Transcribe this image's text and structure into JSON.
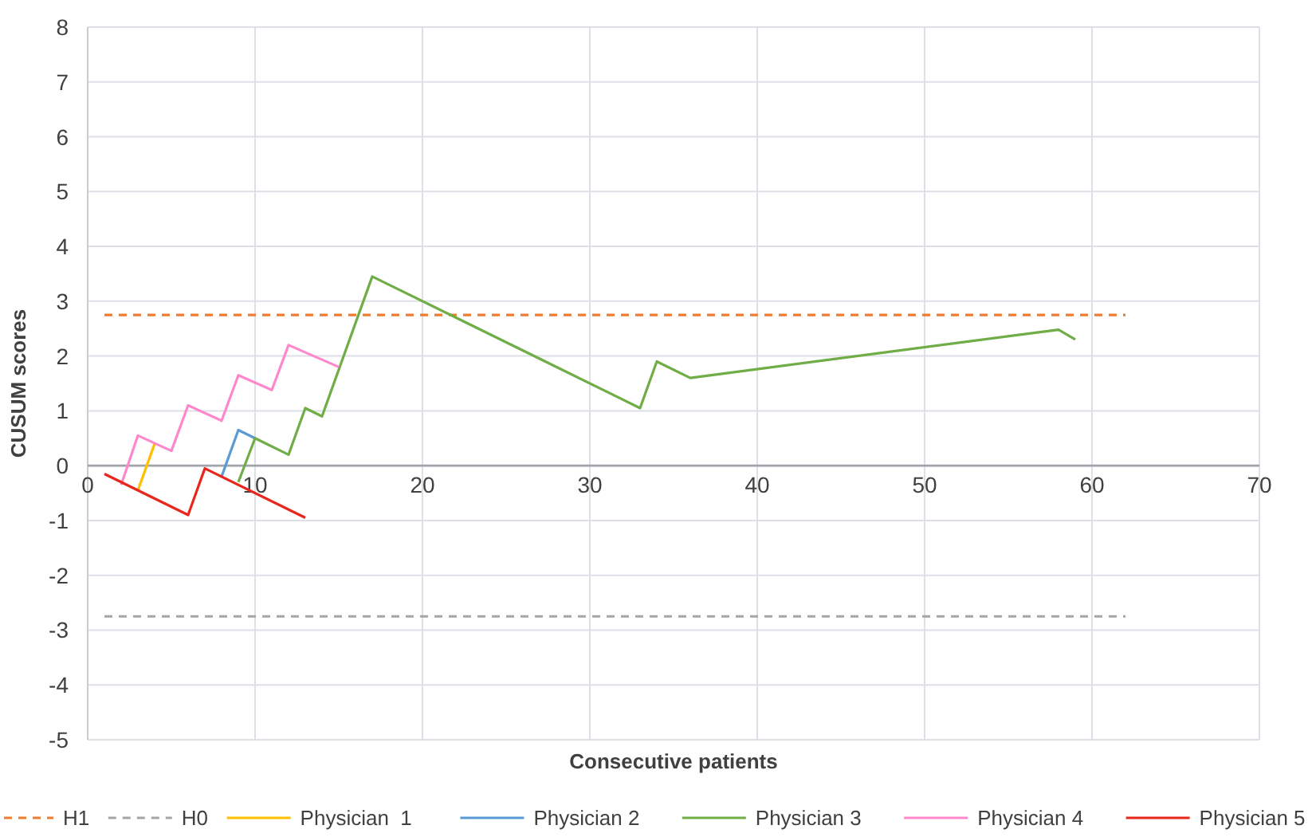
{
  "chart_data": {
    "type": "line",
    "xlabel": "Consecutive patients",
    "ylabel": "CUSUM scores",
    "xlim": [
      0,
      70
    ],
    "xticks": [
      0,
      10,
      20,
      30,
      40,
      50,
      60,
      70
    ],
    "ylim": [
      -5,
      8
    ],
    "yticks": [
      -5,
      -4,
      -3,
      -2,
      -1,
      0,
      1,
      2,
      3,
      4,
      5,
      6,
      7,
      8
    ],
    "grid": true,
    "legend": "bottom",
    "series": [
      {
        "name": "H1",
        "color": "#ed7d31",
        "line_style": "dashed",
        "x": [
          1,
          62
        ],
        "values": [
          2.75,
          2.75
        ]
      },
      {
        "name": "H0",
        "color": "#a5a5a5",
        "line_style": "dashed",
        "x": [
          1,
          62
        ],
        "values": [
          -2.75,
          -2.75
        ]
      },
      {
        "name": "Physician  1",
        "color": "#ffc000",
        "x": [
          3,
          4
        ],
        "values": [
          -0.45,
          0.4
        ]
      },
      {
        "name": "Physician 2",
        "color": "#5b9bd5",
        "x": [
          8,
          9,
          10
        ],
        "values": [
          -0.2,
          0.65,
          0.5
        ]
      },
      {
        "name": "Physician 3",
        "color": "#70ad47",
        "x": [
          9,
          10,
          12,
          13,
          14,
          17,
          23,
          27,
          33,
          34,
          36,
          58,
          59
        ],
        "values": [
          -0.3,
          0.5,
          0.2,
          1.05,
          0.9,
          3.45,
          2.55,
          1.95,
          1.05,
          1.9,
          1.6,
          2.48,
          2.3
        ]
      },
      {
        "name": "Physician 4",
        "color": "#ff88cc",
        "x": [
          2,
          3,
          5,
          6,
          8,
          9,
          11,
          12,
          15
        ],
        "values": [
          -0.35,
          0.55,
          0.27,
          1.1,
          0.82,
          1.65,
          1.38,
          2.2,
          1.8
        ]
      },
      {
        "name": "Physician 5",
        "color": "#e8261c",
        "x": [
          1,
          6,
          7,
          13
        ],
        "values": [
          -0.15,
          -0.9,
          -0.05,
          -0.95
        ]
      }
    ]
  }
}
